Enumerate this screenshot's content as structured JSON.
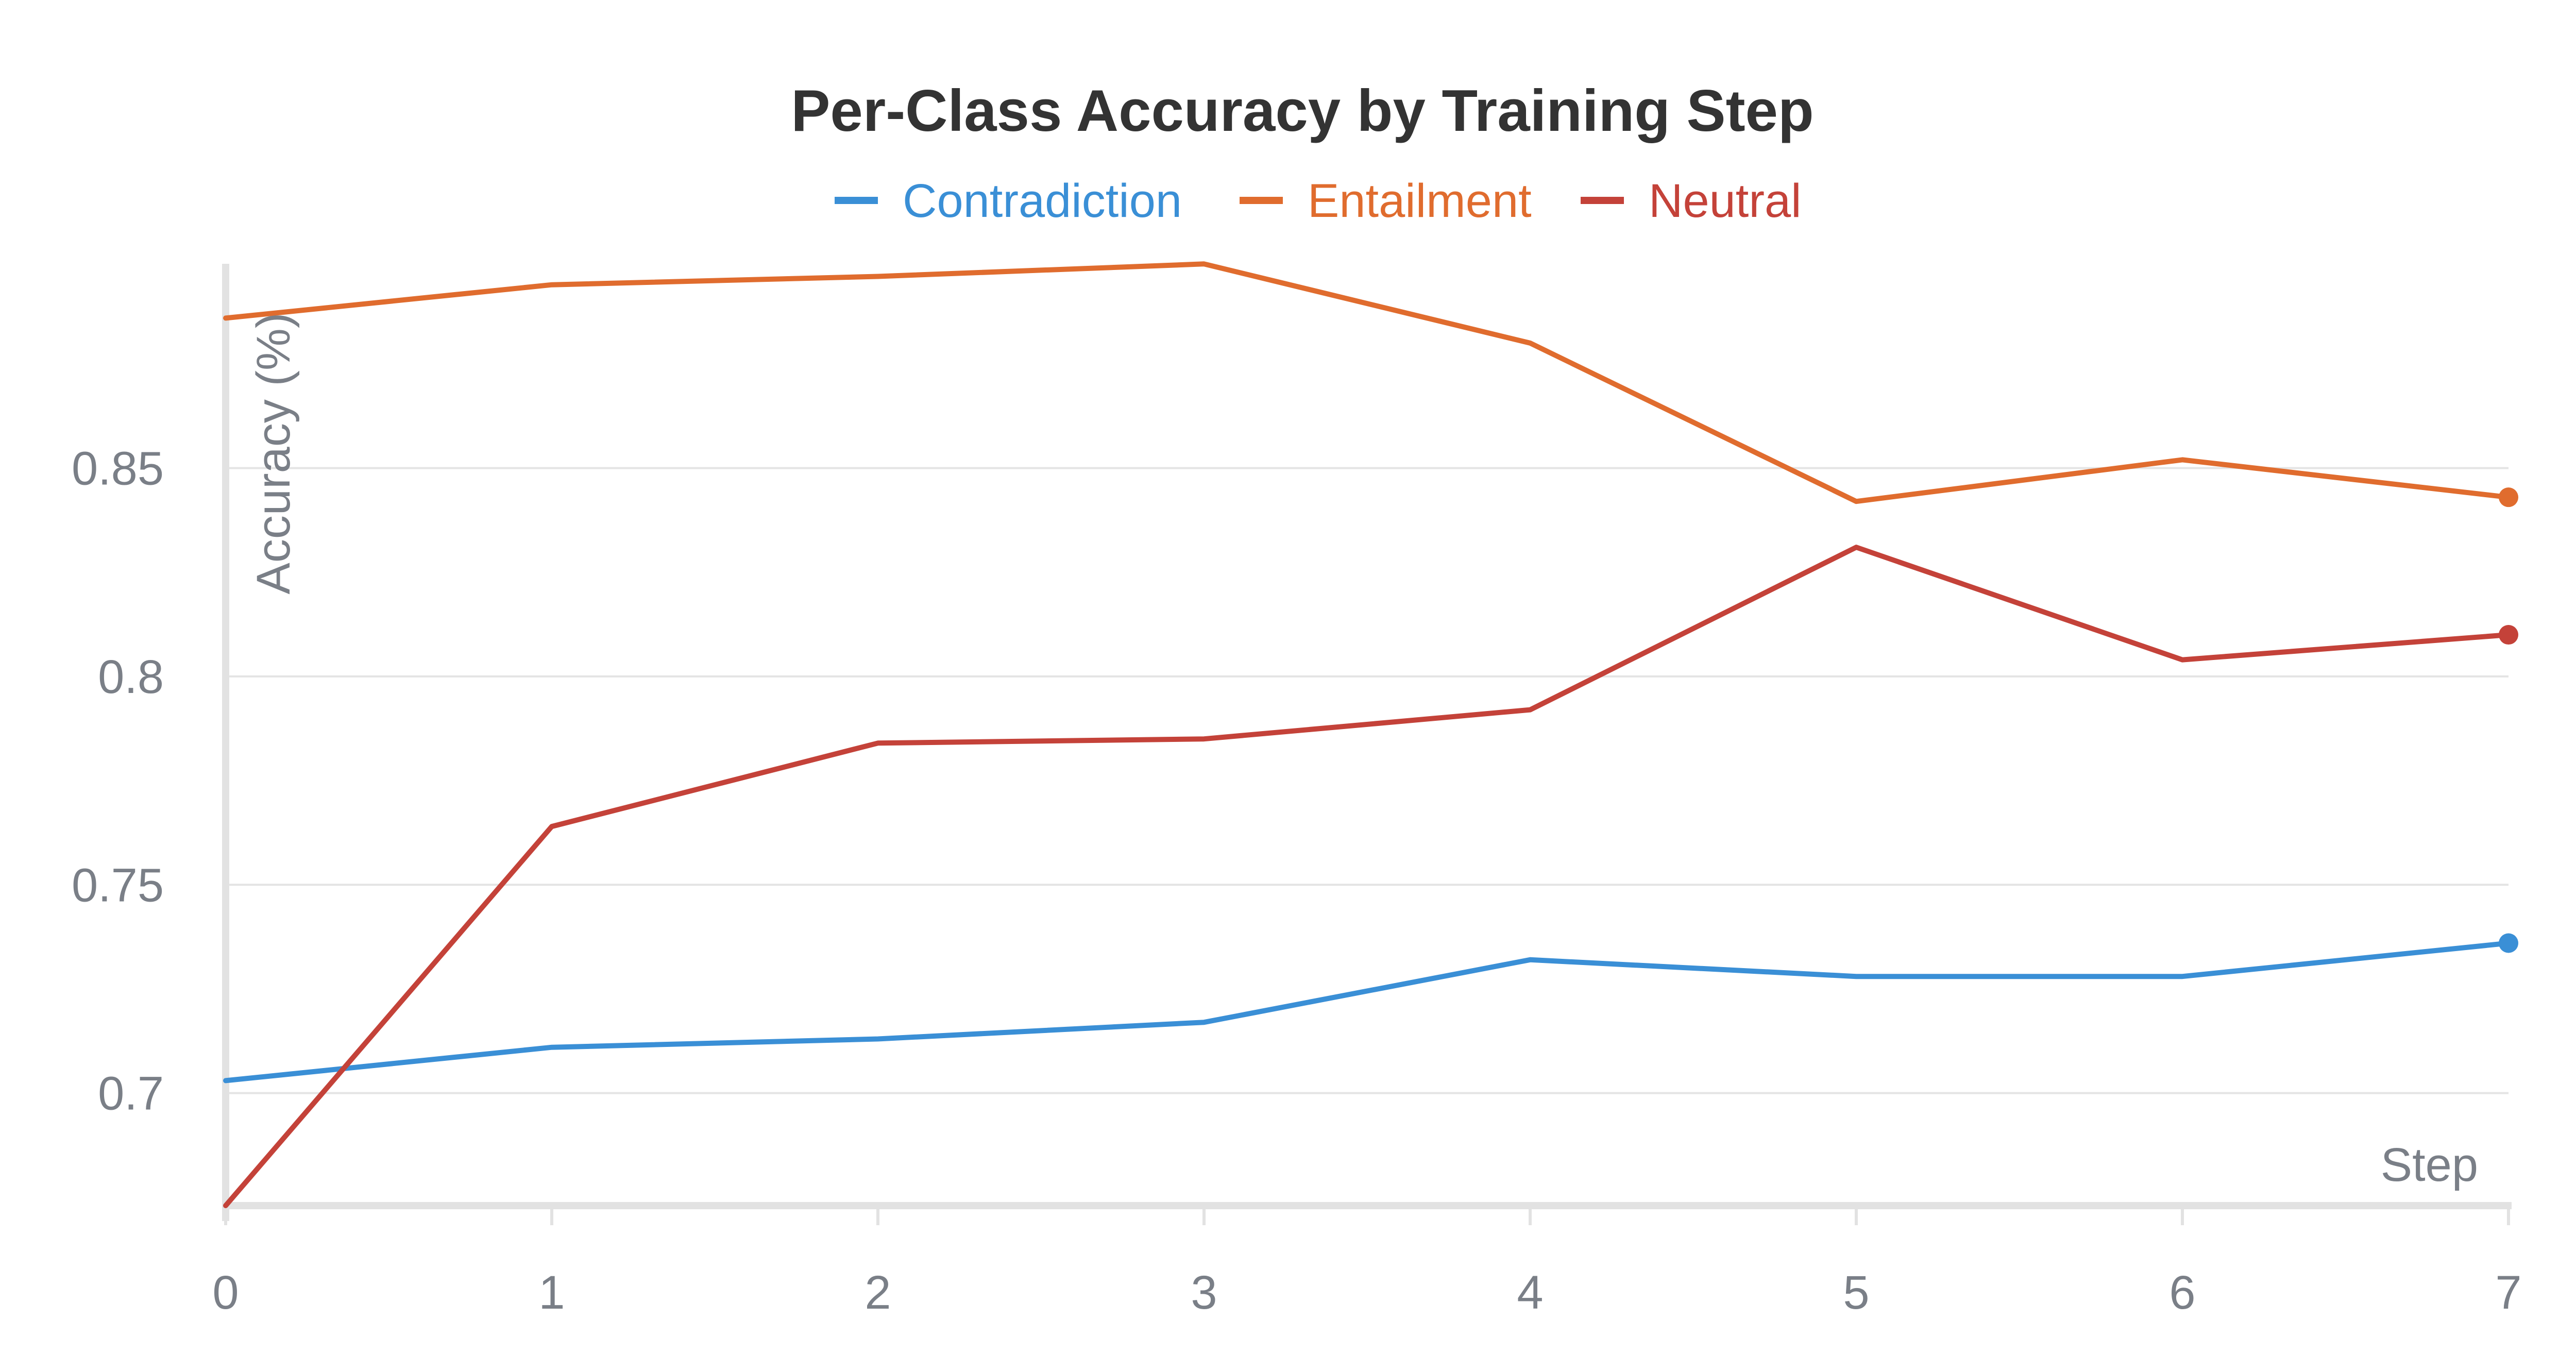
{
  "chart_data": {
    "type": "line",
    "title": "Per-Class Accuracy by Training Step",
    "xlabel": "Step",
    "ylabel": "Accuracy (%)",
    "x": [
      0,
      1,
      2,
      3,
      4,
      5,
      6,
      7
    ],
    "xlim": [
      0,
      7
    ],
    "ylim": [
      0.673,
      0.902
    ],
    "y_ticks": [
      0.7,
      0.75,
      0.8,
      0.85
    ],
    "y_tick_labels": [
      "0.7",
      "0.75",
      "0.8",
      "0.85"
    ],
    "x_tick_labels": [
      "0",
      "1",
      "2",
      "3",
      "4",
      "5",
      "6",
      "7"
    ],
    "grid": "horizontal",
    "legend_position": "top-center",
    "series": [
      {
        "name": "Contradiction",
        "color": "#3a8fd6",
        "values": [
          0.703,
          0.711,
          0.713,
          0.717,
          0.732,
          0.728,
          0.728,
          0.736
        ]
      },
      {
        "name": "Entailment",
        "color": "#e06c2e",
        "values": [
          0.886,
          0.894,
          0.896,
          0.899,
          0.88,
          0.842,
          0.852,
          0.843
        ]
      },
      {
        "name": "Neutral",
        "color": "#c44239",
        "values": [
          0.673,
          0.764,
          0.784,
          0.785,
          0.792,
          0.831,
          0.804,
          0.81
        ]
      }
    ]
  }
}
